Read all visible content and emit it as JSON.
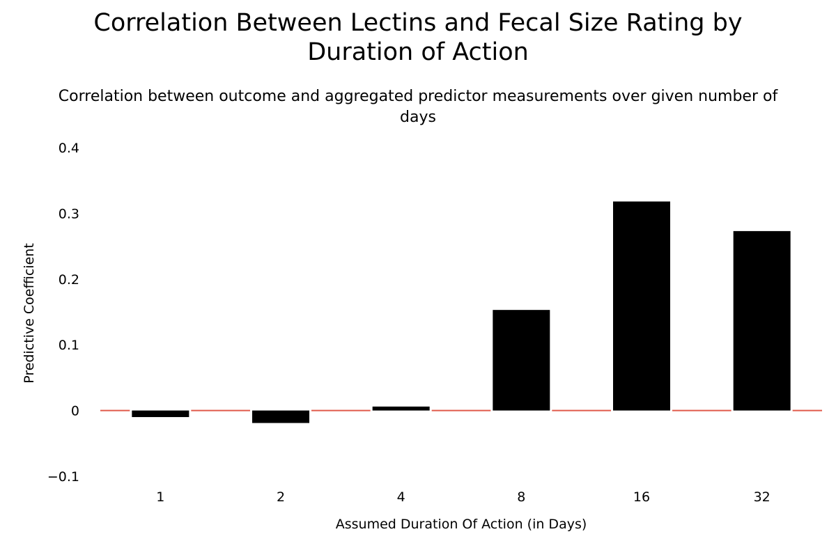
{
  "chart_data": {
    "type": "bar",
    "title": "Correlation Between Lectins and Fecal Size Rating by Duration of Action",
    "subtitle": "Correlation between outcome and aggregated predictor measurements over given number of days",
    "xlabel": "Assumed Duration Of Action (in Days)",
    "ylabel": "Predictive Coefficient",
    "categories": [
      "1",
      "2",
      "4",
      "8",
      "16",
      "32"
    ],
    "values": [
      -0.01,
      -0.019,
      0.006,
      0.153,
      0.318,
      0.273
    ],
    "ylim": [
      -0.1,
      0.4
    ],
    "yticks": [
      0.4,
      0.3,
      0.2,
      0.1,
      0,
      -0.1
    ],
    "ytick_labels": [
      "0.4",
      "0.3",
      "0.2",
      "0.1",
      "0",
      "−0.1"
    ],
    "grid": false,
    "legend": "none",
    "colors": {
      "bar": "#000000",
      "zero_line": "#e05a4a",
      "background": "#ffffff"
    }
  }
}
